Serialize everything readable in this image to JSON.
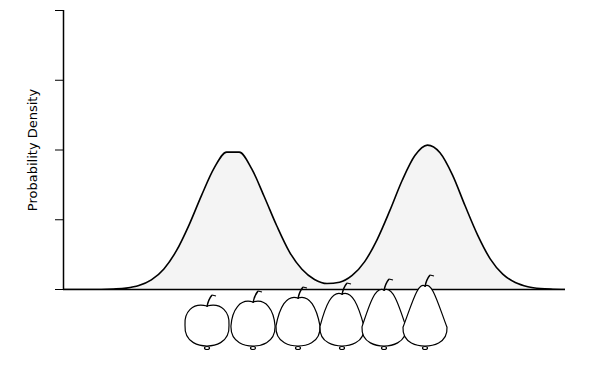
{
  "chart_data": {
    "type": "area",
    "ylabel": "Probability Density",
    "x": [
      0,
      0.25,
      0.5,
      0.75,
      1,
      1.25,
      1.5,
      1.75,
      2,
      2.25,
      2.5,
      2.75,
      3,
      3.25,
      3.5,
      3.75,
      4,
      4.25,
      4.5,
      4.75,
      5,
      5.25,
      5.5,
      5.75,
      6,
      6.25,
      6.5,
      6.75,
      7,
      7.25,
      7.5,
      7.75,
      8,
      8.25,
      8.5,
      8.75,
      9,
      9.25,
      9.5,
      9.75,
      10
    ],
    "values": [
      0,
      0,
      0,
      0.001,
      0.007,
      0.02,
      0.056,
      0.137,
      0.295,
      0.556,
      0.924,
      1.35,
      1.74,
      1.97,
      1.97,
      1.73,
      1.33,
      0.91,
      0.54,
      0.29,
      0.144,
      0.086,
      0.105,
      0.202,
      0.4,
      0.72,
      1.13,
      1.57,
      1.92,
      2.07,
      1.96,
      1.64,
      1.2,
      0.78,
      0.44,
      0.22,
      0.1,
      0.04,
      0.013,
      0.004,
      0.001
    ],
    "color": "#f4f4f4",
    "xlim": [
      0,
      10
    ],
    "ylim": [
      0,
      4
    ],
    "xticks": [],
    "yticks": [
      0,
      1,
      2,
      3,
      4
    ],
    "tick_labels": false,
    "grid": false
  }
}
